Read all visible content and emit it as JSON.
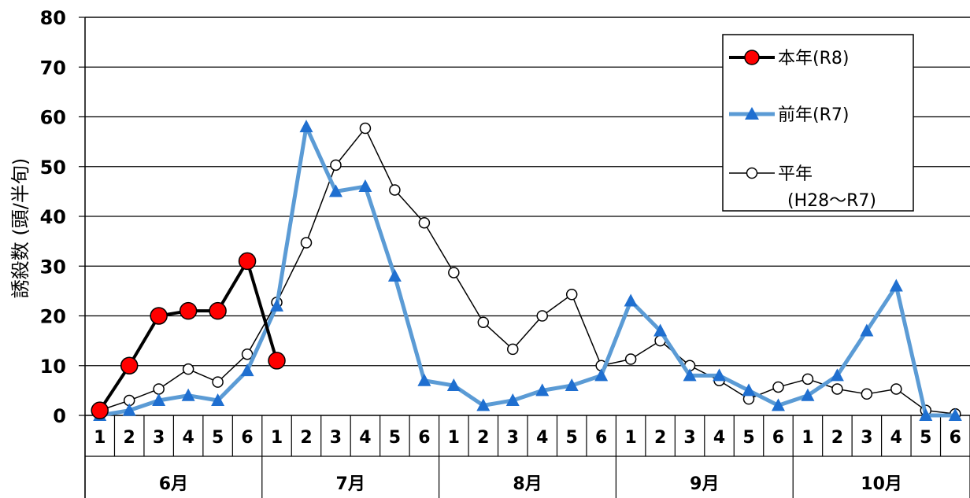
{
  "chart_data": {
    "type": "line",
    "ylabel": "誘殺数 (頭/半旬)",
    "ylim": [
      0,
      80
    ],
    "yticks": [
      0,
      10,
      20,
      30,
      40,
      50,
      60,
      70,
      80
    ],
    "grid": "horizontal",
    "legend_position": "top-right",
    "months": [
      "6月",
      "7月",
      "8月",
      "9月",
      "10月"
    ],
    "pentads_per_month": [
      "1",
      "2",
      "3",
      "4",
      "5",
      "6"
    ],
    "series": [
      {
        "name": "本年(R8)",
        "color": "#000000",
        "marker_color": "#ff0000",
        "marker": "circle",
        "values": [
          1,
          10,
          20,
          21,
          21,
          31,
          11,
          null,
          null,
          null,
          null,
          null,
          null,
          null,
          null,
          null,
          null,
          null,
          null,
          null,
          null,
          null,
          null,
          null,
          null,
          null,
          null,
          null,
          null,
          null
        ]
      },
      {
        "name": "前年(R7)",
        "color": "#5b9bd5",
        "marker_color": "#1f6fd0",
        "marker": "triangle",
        "values": [
          0,
          1,
          3,
          4,
          3,
          9,
          22,
          58,
          45,
          46,
          28,
          7,
          6,
          2,
          3,
          5,
          6,
          8,
          23,
          17,
          8,
          8,
          5,
          2,
          4,
          8,
          17,
          26,
          0,
          0
        ]
      },
      {
        "name": "平年",
        "name_line2": "(H28～R7)",
        "color": "#000000",
        "marker_color": "#ffffff",
        "marker": "open-circle",
        "values": [
          1,
          3,
          5.3,
          9.3,
          6.7,
          12.3,
          22.7,
          34.7,
          50.3,
          57.7,
          45.3,
          38.7,
          28.7,
          18.7,
          13.3,
          20,
          24.3,
          10,
          11.3,
          15,
          10,
          7,
          3.3,
          5.7,
          7.3,
          5.3,
          4.3,
          5.3,
          1,
          0.3
        ]
      }
    ]
  }
}
